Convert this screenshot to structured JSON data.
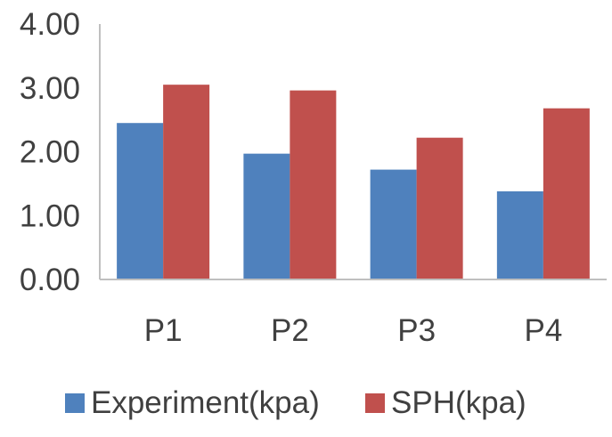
{
  "chart_data": {
    "type": "bar",
    "categories": [
      "P1",
      "P2",
      "P3",
      "P4"
    ],
    "series": [
      {
        "name": "Experiment(kpa)",
        "values": [
          2.45,
          1.97,
          1.72,
          1.38
        ],
        "color": "#4f81bd"
      },
      {
        "name": "SPH(kpa)",
        "values": [
          3.05,
          2.96,
          2.22,
          2.68
        ],
        "color": "#c0504d"
      }
    ],
    "yticks": [
      "0.00",
      "1.00",
      "2.00",
      "3.00",
      "4.00"
    ],
    "ylim": [
      0,
      4
    ],
    "grid": false,
    "legend_position": "bottom",
    "axis_color": "#bfbfbf",
    "title": "",
    "xlabel": "",
    "ylabel": ""
  }
}
